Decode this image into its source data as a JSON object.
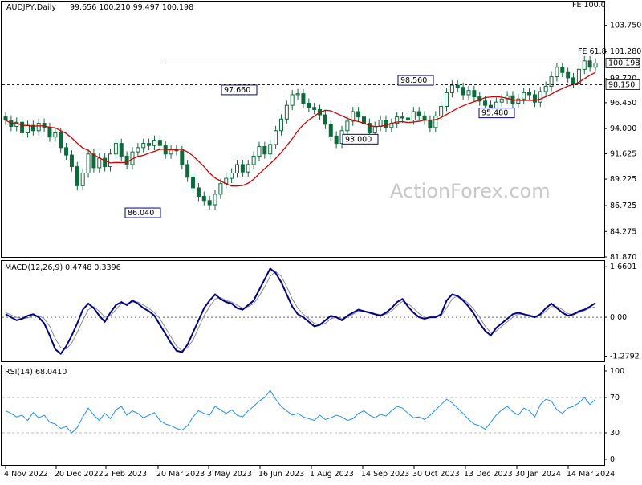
{
  "chart_data": {
    "type": "candlestick",
    "symbol": "AUDJPY,Daily",
    "ohlc": "99.656 100.210 99.497 100.198",
    "watermark": "ActionForex.com",
    "dates": [
      "4 Nov 2022",
      "20 Dec 2022",
      "2 Feb 2023",
      "20 Mar 2023",
      "3 May 2023",
      "16 Jun 2023",
      "1 Aug 2023",
      "14 Sep 2023",
      "30 Oct 2023",
      "13 Dec 2023",
      "30 Jan 2024",
      "14 Mar 2024"
    ],
    "price_axis": {
      "ticks": [
        "103.750",
        "101.280",
        "98.720",
        "96.450",
        "94.000",
        "91.625",
        "89.225",
        "86.725",
        "84.275",
        "81.870"
      ],
      "range": [
        81.87,
        106.0
      ],
      "last_price": "100.198",
      "ma_price": "98.150"
    },
    "ma_label_hidden": "",
    "labels": {
      "fe100": "FE 100.0",
      "fe618": "FE 61.8"
    },
    "annotations": [
      {
        "text": "86.040",
        "price": 86.04,
        "date_index": 3
      },
      {
        "text": "97.660",
        "price": 97.66,
        "date_index": 5
      },
      {
        "text": "93.000",
        "price": 93.0,
        "date_index": 7
      },
      {
        "text": "98.560",
        "price": 98.56,
        "date_index": 8
      },
      {
        "text": "95.480",
        "price": 95.48,
        "date_index": 9
      }
    ],
    "candles_close": [
      94.8,
      94.2,
      94.6,
      93.6,
      94.3,
      93.8,
      94.5,
      94.1,
      93.2,
      93.6,
      92.2,
      91.5,
      90.4,
      88.6,
      89.8,
      91.6,
      90.3,
      91.2,
      90.4,
      91.6,
      92.6,
      91.4,
      90.6,
      91.8,
      92.2,
      92.6,
      92.4,
      92.9,
      92.4,
      91.6,
      92.0,
      91.9,
      90.6,
      89.4,
      88.4,
      87.6,
      87.2,
      86.8,
      87.8,
      88.8,
      89.3,
      89.8,
      90.6,
      89.9,
      90.6,
      91.4,
      92.3,
      91.6,
      92.5,
      93.8,
      94.9,
      96.2,
      97.2,
      97.3,
      96.4,
      96.0,
      95.8,
      95.3,
      94.4,
      93.3,
      92.6,
      93.8,
      94.7,
      95.6,
      95.1,
      94.5,
      93.6,
      94.2,
      94.8,
      94.1,
      94.5,
      95.1,
      95.0,
      94.8,
      95.6,
      95.2,
      94.8,
      94.1,
      95.2,
      96.1,
      97.4,
      98.1,
      97.9,
      97.2,
      97.6,
      97.0,
      96.6,
      96.2,
      95.8,
      96.5,
      96.8,
      97.1,
      96.4,
      96.8,
      97.4,
      97.2,
      96.5,
      97.5,
      98.0,
      98.9,
      99.8,
      99.3,
      98.8,
      98.3,
      99.6,
      100.4,
      99.8,
      100.2
    ],
    "macd": {
      "label": "MACD(12,26,9) 0.4748 0.3396",
      "ticks": [
        "1.6601",
        "0.00",
        "-1.2792"
      ],
      "range": [
        -1.45,
        1.85
      ],
      "main": [
        0.1,
        0.0,
        -0.1,
        -0.05,
        0.05,
        0.1,
        0.0,
        -0.2,
        -0.6,
        -1.05,
        -1.2,
        -0.95,
        -0.6,
        -0.2,
        0.25,
        0.45,
        0.3,
        0.05,
        -0.15,
        0.15,
        0.4,
        0.5,
        0.4,
        0.55,
        0.45,
        0.3,
        0.2,
        0.05,
        -0.25,
        -0.55,
        -0.85,
        -1.1,
        -1.15,
        -0.9,
        -0.5,
        -0.1,
        0.3,
        0.55,
        0.75,
        0.6,
        0.5,
        0.45,
        0.3,
        0.25,
        0.4,
        0.55,
        0.9,
        1.25,
        1.6,
        1.45,
        1.15,
        0.75,
        0.35,
        0.1,
        0.0,
        -0.15,
        -0.3,
        -0.25,
        -0.1,
        0.05,
        0.0,
        -0.1,
        0.05,
        0.15,
        0.25,
        0.2,
        0.15,
        0.1,
        0.05,
        0.15,
        0.3,
        0.5,
        0.6,
        0.35,
        0.15,
        0.0,
        -0.05,
        0.0,
        0.0,
        0.1,
        0.55,
        0.75,
        0.7,
        0.55,
        0.35,
        0.1,
        -0.2,
        -0.45,
        -0.6,
        -0.35,
        -0.2,
        -0.05,
        0.1,
        0.15,
        0.1,
        0.05,
        0.0,
        0.1,
        0.3,
        0.45,
        0.3,
        0.15,
        0.05,
        0.1,
        0.2,
        0.25,
        0.35,
        0.47
      ],
      "signal": [
        0.15,
        0.08,
        0.0,
        -0.05,
        -0.02,
        0.05,
        0.05,
        -0.05,
        -0.3,
        -0.7,
        -1.0,
        -1.05,
        -0.85,
        -0.5,
        -0.1,
        0.25,
        0.35,
        0.2,
        0.0,
        0.05,
        0.25,
        0.45,
        0.45,
        0.5,
        0.5,
        0.4,
        0.3,
        0.15,
        -0.05,
        -0.35,
        -0.65,
        -0.95,
        -1.1,
        -1.0,
        -0.75,
        -0.35,
        0.05,
        0.35,
        0.6,
        0.65,
        0.55,
        0.5,
        0.4,
        0.3,
        0.35,
        0.45,
        0.7,
        1.0,
        1.35,
        1.5,
        1.35,
        1.0,
        0.6,
        0.3,
        0.1,
        -0.05,
        -0.2,
        -0.25,
        -0.2,
        -0.05,
        0.0,
        -0.05,
        0.0,
        0.1,
        0.2,
        0.2,
        0.18,
        0.12,
        0.08,
        0.1,
        0.2,
        0.38,
        0.52,
        0.45,
        0.3,
        0.12,
        0.0,
        -0.02,
        0.0,
        0.05,
        0.3,
        0.6,
        0.7,
        0.6,
        0.45,
        0.25,
        0.0,
        -0.3,
        -0.5,
        -0.45,
        -0.3,
        -0.15,
        0.0,
        0.1,
        0.1,
        0.08,
        0.03,
        0.05,
        0.2,
        0.35,
        0.35,
        0.25,
        0.12,
        0.08,
        0.15,
        0.22,
        0.3,
        0.34
      ]
    },
    "rsi": {
      "label": "RSI(14) 68.0410",
      "ticks": [
        "100",
        "70",
        "30",
        "0"
      ],
      "values": [
        55,
        52,
        48,
        50,
        44,
        53,
        47,
        50,
        42,
        40,
        35,
        37,
        30,
        36,
        48,
        58,
        50,
        44,
        52,
        46,
        56,
        60,
        50,
        55,
        52,
        47,
        50,
        53,
        44,
        40,
        38,
        35,
        33,
        38,
        48,
        55,
        52,
        50,
        60,
        56,
        52,
        56,
        50,
        48,
        55,
        60,
        66,
        70,
        78,
        68,
        60,
        55,
        50,
        52,
        48,
        46,
        44,
        50,
        45,
        47,
        50,
        48,
        44,
        46,
        52,
        55,
        50,
        47,
        51,
        49,
        55,
        60,
        58,
        52,
        47,
        48,
        45,
        50,
        56,
        62,
        68,
        64,
        58,
        52,
        45,
        40,
        38,
        34,
        42,
        50,
        56,
        60,
        54,
        50,
        58,
        55,
        48,
        62,
        68,
        66,
        56,
        52,
        58,
        60,
        64,
        70,
        62,
        68
      ]
    }
  }
}
